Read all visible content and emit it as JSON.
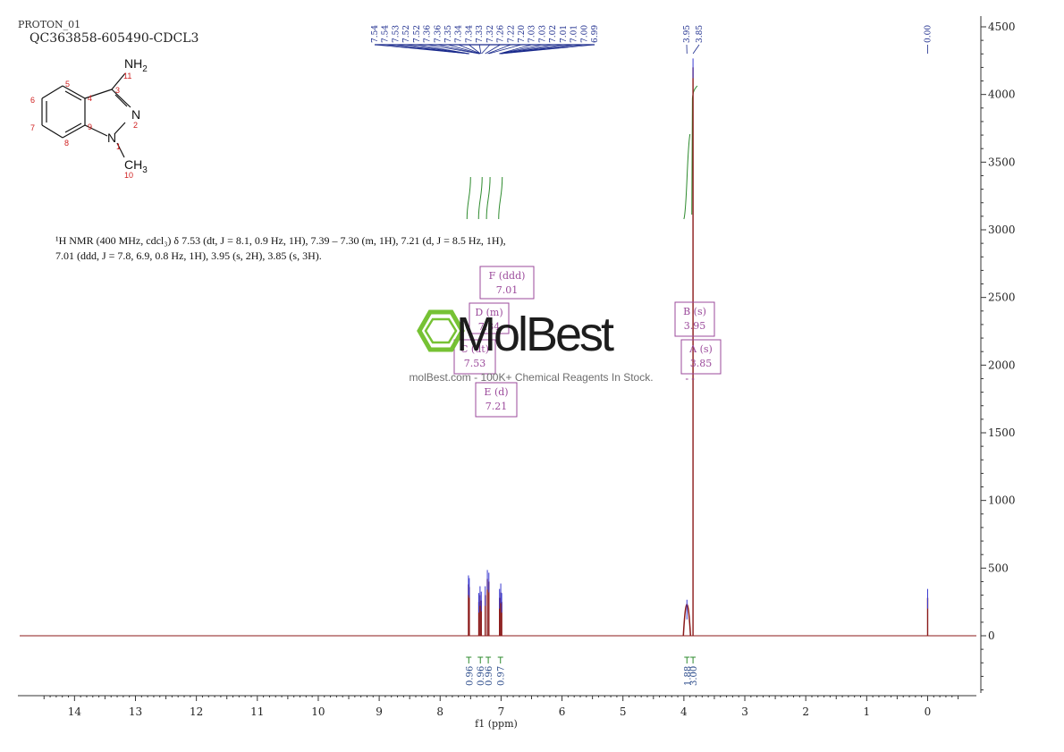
{
  "header": {
    "experiment": "PROTON_01",
    "sample": "QC363858-605490-CDCL3"
  },
  "structure": {
    "group_top": "NH",
    "group_top_sub": "2",
    "group_bottom": "CH",
    "group_bottom_sub": "3",
    "n_label_ring": "N",
    "n_label_pyrazole": "N",
    "atom_numbers": [
      "11",
      "3",
      "4",
      "5",
      "6",
      "7",
      "8",
      "9",
      "2",
      "1",
      "10"
    ]
  },
  "description": {
    "line1": "¹H NMR (400 MHz, cdcl₃) δ 7.53 (dt, J = 8.1, 0.9 Hz, 1H), 7.39 – 7.30 (m, 1H), 7.21 (d, J = 8.5 Hz, 1H),",
    "line2": "7.01 (ddd, J = 7.8, 6.9, 0.8 Hz, 1H), 3.95 (s, 2H), 3.85 (s, 3H)."
  },
  "watermark": {
    "brand": "MolBest",
    "tagline": "molBest.com - 100K+ Chemical Reagents In Stock."
  },
  "multiplets": [
    {
      "label": "F (ddd)",
      "value": "7.01",
      "ppm": 7.01
    },
    {
      "label": "D (m)",
      "value": "7.34",
      "ppm": 7.34
    },
    {
      "label": "C (dt)",
      "value": "7.53",
      "ppm": 7.53
    },
    {
      "label": "E (d)",
      "value": "7.21",
      "ppm": 7.21
    },
    {
      "label": "B (s)",
      "value": "3.95",
      "ppm": 3.95
    },
    {
      "label": "A (s)",
      "value": "3.85",
      "ppm": 3.85
    }
  ],
  "colors": {
    "spectrum": "#8b1a1a",
    "peak_labels": "#1a2a8c",
    "integral": "#2e8b2e",
    "multiplet_box": "#9b4a9b",
    "watermark": "#6fbf2a"
  },
  "chart_data": {
    "type": "line",
    "xlabel": "f1 (ppm)",
    "x_reversed": true,
    "xlim": [
      14.9,
      -0.8
    ],
    "ylim": [
      -450,
      4550
    ],
    "x_ticks": [
      14,
      13,
      12,
      11,
      10,
      9,
      8,
      7,
      6,
      5,
      4,
      3,
      2,
      1,
      0
    ],
    "y_ticks": [
      0,
      500,
      1000,
      1500,
      2000,
      2500,
      3000,
      3500,
      4000,
      4500
    ],
    "peak_labels": [
      "7.54",
      "7.54",
      "7.53",
      "7.52",
      "7.52",
      "7.36",
      "7.36",
      "7.35",
      "7.34",
      "7.34",
      "7.33",
      "7.32",
      "7.26",
      "7.22",
      "7.20",
      "7.03",
      "7.03",
      "7.02",
      "7.01",
      "7.01",
      "7.00",
      "6.99",
      "3.95",
      "3.85",
      "0.00"
    ],
    "peaks": [
      {
        "ppm": 7.535,
        "height": 380
      },
      {
        "ppm": 7.522,
        "height": 360
      },
      {
        "ppm": 7.365,
        "height": 250
      },
      {
        "ppm": 7.345,
        "height": 300
      },
      {
        "ppm": 7.325,
        "height": 260
      },
      {
        "ppm": 7.26,
        "height": 300
      },
      {
        "ppm": 7.225,
        "height": 420
      },
      {
        "ppm": 7.2,
        "height": 400
      },
      {
        "ppm": 7.025,
        "height": 280
      },
      {
        "ppm": 7.005,
        "height": 320
      },
      {
        "ppm": 6.99,
        "height": 250
      },
      {
        "ppm": 3.95,
        "height": 200
      },
      {
        "ppm": 3.85,
        "height": 4200
      },
      {
        "ppm": 0.0,
        "height": 280
      }
    ],
    "integrals": [
      {
        "ppm": 7.53,
        "value": "0.96"
      },
      {
        "ppm": 7.34,
        "value": "0.96"
      },
      {
        "ppm": 7.21,
        "value": "0.96"
      },
      {
        "ppm": 7.01,
        "value": "0.97"
      },
      {
        "ppm": 3.95,
        "value": "1.88"
      },
      {
        "ppm": 3.85,
        "value": "3.00"
      }
    ]
  }
}
